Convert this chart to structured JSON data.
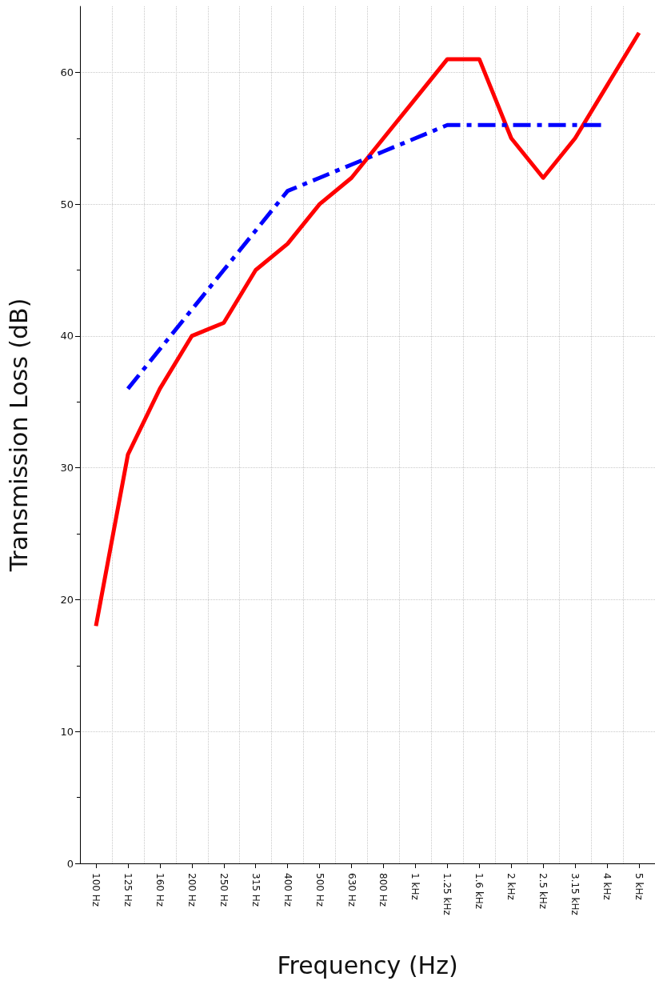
{
  "chart_data": {
    "type": "line",
    "xlabel": "Frequency (Hz)",
    "ylabel": "Transmission Loss (dB)",
    "categories": [
      "100 Hz",
      "125 Hz",
      "160 Hz",
      "200 Hz",
      "250 Hz",
      "315 Hz",
      "400 Hz",
      "500 Hz",
      "630 Hz",
      "800 Hz",
      "1 kHz",
      "1.25 kHz",
      "1.6 kHz",
      "2 kHz",
      "2.5 kHz",
      "3.15 kHz",
      "4 kHz",
      "5 kHz"
    ],
    "series": [
      {
        "color": "#ff0000",
        "line_style": "solid",
        "values": [
          18,
          31,
          36,
          40,
          41,
          45,
          47,
          50,
          52,
          55,
          58,
          61,
          61,
          55,
          52,
          55,
          59,
          63
        ]
      },
      {
        "color": "#0000ff",
        "line_style": "dashed",
        "values": [
          null,
          36,
          39,
          42,
          45,
          48,
          51,
          52,
          53,
          54,
          55,
          56,
          56,
          56,
          56,
          56,
          56,
          null
        ]
      }
    ],
    "ylim": [
      0,
      65
    ],
    "yticks": [
      0,
      10,
      20,
      30,
      40,
      50,
      60
    ],
    "grid": true,
    "marker": "none"
  }
}
